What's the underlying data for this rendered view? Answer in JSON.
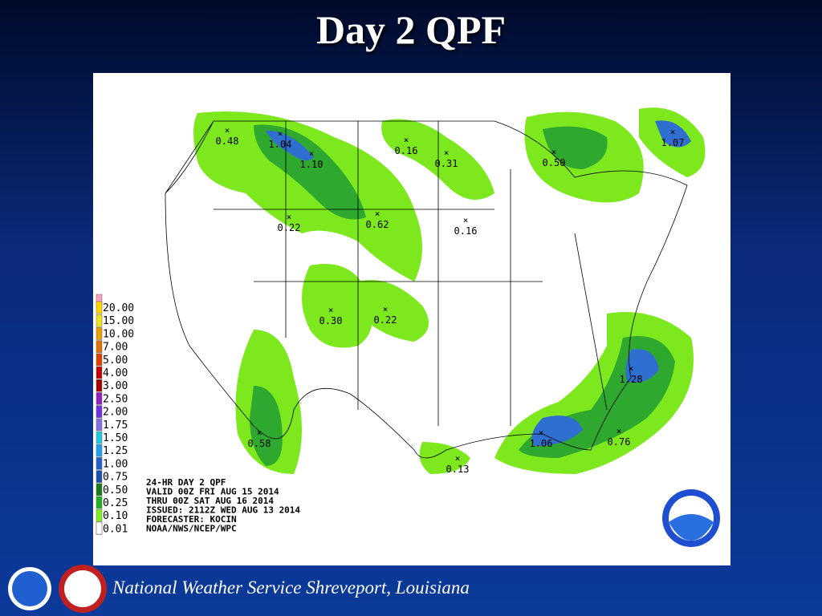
{
  "title": "Day 2 QPF",
  "legend": [
    "20.00",
    "15.00",
    "10.00",
    "7.00",
    "5.00",
    "4.00",
    "3.00",
    "2.50",
    "2.00",
    "1.75",
    "1.50",
    "1.25",
    "1.00",
    "0.75",
    "0.50",
    "0.25",
    "0.10",
    "0.01"
  ],
  "points": [
    {
      "label": "0.48"
    },
    {
      "label": "1.04"
    },
    {
      "label": "1.10"
    },
    {
      "label": "0.22"
    },
    {
      "label": "0.62"
    },
    {
      "label": "0.16"
    },
    {
      "label": "0.31"
    },
    {
      "label": "0.16"
    },
    {
      "label": "0.50"
    },
    {
      "label": "1.07"
    },
    {
      "label": "0.30"
    },
    {
      "label": "0.22"
    },
    {
      "label": "1.28"
    },
    {
      "label": "1.06"
    },
    {
      "label": "0.76"
    },
    {
      "label": "0.58"
    },
    {
      "label": "0.13"
    }
  ],
  "info": [
    "24-HR DAY 2 QPF",
    "VALID 00Z FRI AUG 15 2014",
    "THRU 00Z SAT AUG 16 2014",
    "ISSUED: 2112Z WED AUG 13 2014",
    "FORECASTER: KOCIN",
    "NOAA/NWS/NCEP/WPC"
  ],
  "footer": "National Weather Service Shreveport, Louisiana"
}
